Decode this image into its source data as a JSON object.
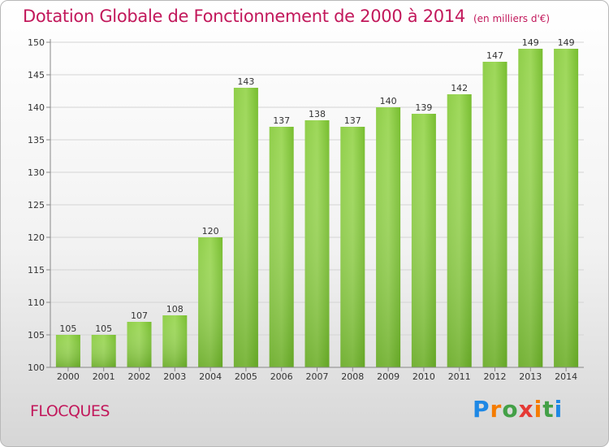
{
  "header": {
    "title": "Dotation Globale de Fonctionnement de 2000 à 2014",
    "subtitle": "(en milliers d'€)"
  },
  "commune": "FLOCQUES",
  "logo": {
    "text": "Proxiti"
  },
  "chart_data": {
    "type": "bar",
    "title": "Dotation Globale de Fonctionnement de 2000 à 2014",
    "subtitle": "(en milliers d'€)",
    "xlabel": "",
    "ylabel": "",
    "categories": [
      "2000",
      "2001",
      "2002",
      "2003",
      "2004",
      "2005",
      "2006",
      "2007",
      "2008",
      "2009",
      "2010",
      "2011",
      "2012",
      "2013",
      "2014"
    ],
    "values": [
      105,
      105,
      107,
      108,
      120,
      143,
      137,
      138,
      137,
      140,
      139,
      142,
      147,
      149,
      149
    ],
    "ylim": [
      100,
      150
    ],
    "yticks": [
      100,
      105,
      110,
      115,
      120,
      125,
      130,
      135,
      140,
      145,
      150
    ],
    "grid": true,
    "bar_color": "#7cc235",
    "bar_color_light": "#9ed85a"
  }
}
